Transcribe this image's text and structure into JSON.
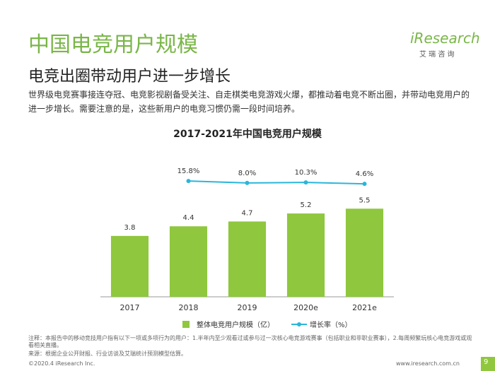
{
  "header": {
    "title": "中国电竞用户规模",
    "subtitle": "电竞出圈带动用户进一步增长",
    "logo": "iResearch",
    "logo_cn": "艾 瑞 咨 询",
    "text": "世界级电竞赛事接连夺冠、电竞影视剧备受关注、自走棋类电竞游戏火爆，都推动着电竞不断出圈，并带动电竞用户的进一步增长。需要注意的是，这些新用户的电竞习惯仍需一段时间培养。"
  },
  "chart_data": {
    "type": "bar",
    "title": "2017-2021年中国电竞用户规模",
    "categories": [
      "2017",
      "2018",
      "2019",
      "2020e",
      "2021e"
    ],
    "series": [
      {
        "name": "整体电竞用户规模（亿）",
        "type": "bar",
        "color": "#8fc73e",
        "values": [
          3.8,
          4.4,
          4.7,
          5.2,
          5.5
        ]
      },
      {
        "name": "增长率（%）",
        "type": "line",
        "axis": "y2",
        "color": "#2ab6da",
        "values": [
          null,
          15.8,
          8.0,
          10.3,
          4.6
        ],
        "value_labels": [
          null,
          "15.8%",
          "8.0%",
          "10.3%",
          "4.6%"
        ]
      }
    ],
    "ylim": [
      0,
      8.6
    ],
    "y2lim": [
      -443,
      103
    ],
    "legend": "bottom"
  },
  "footer": {
    "note": "注释：本报告中的移动竞技用户指有以下一项或多项行为的用户：1.半年内至少观看过或参与过一次核心电竞游戏赛事（包括职业和非职业赛事），2.每周频繁玩核心电竞游戏或观看相关直播。",
    "source": "来源：根据企业公开财报、行业访谈及艾瑞统计预测模型估算。",
    "copyright": "©2020.4 iResearch Inc.",
    "url": "www.iresearch.com.cn",
    "page": "9"
  }
}
